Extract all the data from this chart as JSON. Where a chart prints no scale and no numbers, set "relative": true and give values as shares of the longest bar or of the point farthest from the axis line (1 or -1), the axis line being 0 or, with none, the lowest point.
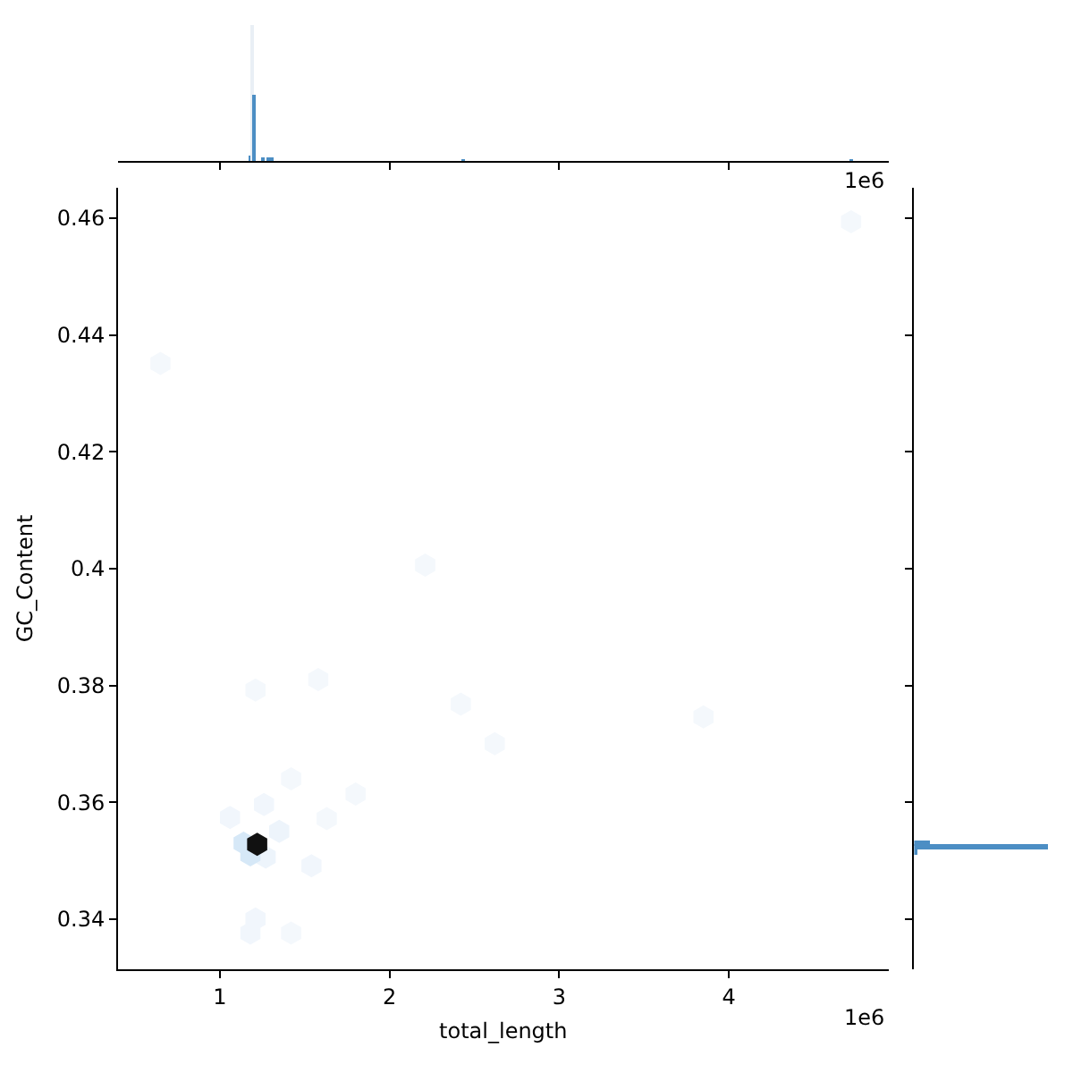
{
  "chart_data": [
    {
      "type": "bar",
      "relative": true,
      "x": [
        1.18,
        1.195,
        1.205,
        1.25,
        1.29,
        1.31,
        2.43,
        4.72
      ],
      "values": [
        0.04,
        1,
        0.48,
        0.03,
        0.02,
        0.02,
        0.01,
        0.01
      ],
      "colors": [
        "#4c8ec4",
        "#e9eff5",
        "#4c8ec4",
        "#4c8ec4",
        "#4c8ec4",
        "#4c8ec4",
        "#4c8ec4",
        "#4c8ec4"
      ],
      "xlim": [
        0.4,
        4.94
      ],
      "xticks": [
        1,
        2,
        3,
        4
      ],
      "tick_labels": false,
      "annotations": [
        "1e6"
      ]
    },
    {
      "type": "scatter",
      "xlabel": "total_length",
      "ylabel": "GC_Content",
      "x": [
        1.22,
        1.14,
        1.18,
        1.27,
        1.35,
        1.26,
        1.06,
        1.42,
        1.63,
        1.8,
        1.54,
        1.21,
        1.58,
        2.42,
        2.62,
        3.85,
        1.21,
        1.18,
        1.42,
        2.21,
        0.65,
        4.72
      ],
      "values": [
        0.3528,
        0.353,
        0.351,
        0.3506,
        0.355,
        0.3596,
        0.3574,
        0.364,
        0.3572,
        0.3614,
        0.3491,
        0.3792,
        0.381,
        0.3768,
        0.37,
        0.3746,
        0.34,
        0.3376,
        0.3376,
        0.4006,
        0.4351,
        0.4594
      ],
      "colors": [
        "#111111",
        "#d6e8f7",
        "#d6e8f7",
        "#edf4fb",
        "#edf4fb",
        "#f1f6fc",
        "#f1f6fc",
        "#f4f8fc",
        "#f4f8fc",
        "#f4f8fc",
        "#f1f6fc",
        "#f4f8fc",
        "#f4f8fc",
        "#f4f8fc",
        "#f4f8fc",
        "#f4f8fc",
        "#f1f6fc",
        "#f1f6fc",
        "#f4f8fc",
        "#f4f8fc",
        "#f4f8fc",
        "#f4f8fc"
      ],
      "xlim": [
        0.4,
        4.94
      ],
      "xticks": [
        1,
        2,
        3,
        4
      ],
      "ylim": [
        0.3314,
        0.4652
      ],
      "yticks": [
        0.34,
        0.36,
        0.38,
        0.4,
        0.42,
        0.44,
        0.46
      ],
      "annotations": [
        "1e6"
      ]
    },
    {
      "type": "bar",
      "relative": true,
      "orientation": "horizontal",
      "color": "#4c8ec4",
      "x": [
        0.3515,
        0.3523,
        0.353
      ],
      "values": [
        0.02,
        1,
        0.12
      ],
      "ylim": [
        0.3314,
        0.4652
      ],
      "yticks": [
        0.34,
        0.36,
        0.38,
        0.4,
        0.42,
        0.44,
        0.46
      ],
      "tick_labels": false
    }
  ]
}
